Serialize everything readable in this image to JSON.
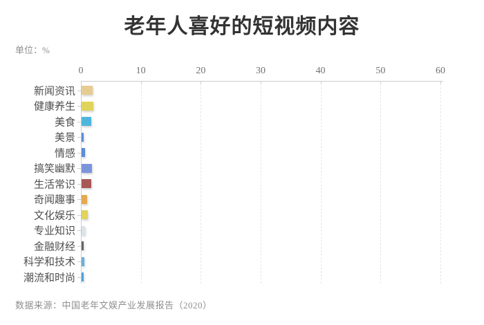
{
  "chart_data": {
    "type": "bar",
    "orientation": "horizontal",
    "title": "老年人喜好的短视频内容",
    "unit_label": "单位：%",
    "source": "数据来源：中国老年文娱产业发展报告（2020）",
    "xlabel": "",
    "ylabel": "",
    "xlim": [
      0,
      60
    ],
    "x_ticks": [
      0,
      10,
      20,
      30,
      40,
      50,
      60
    ],
    "x_axis_position": "top",
    "grid": "dashed-vertical",
    "legend": "none",
    "categories": [
      "新闻资讯",
      "健康养生",
      "美食",
      "美景",
      "情感",
      "搞笑幽默",
      "生活常识",
      "奇闻趣事",
      "文化娱乐",
      "专业知识",
      "金融财经",
      "科学和技术",
      "潮流和时尚"
    ],
    "values": [
      1.9,
      2.0,
      1.6,
      0.4,
      0.6,
      1.75,
      1.65,
      0.95,
      1.05,
      0.6,
      0.4,
      0.5,
      0.4
    ],
    "bar_colors": [
      "#e7cc92",
      "#e0d45c",
      "#4eb6dc",
      "#5c8cd8",
      "#5c8cd8",
      "#7b95dc",
      "#a85956",
      "#e4aa50",
      "#e0d45c",
      "#d9e3e8",
      "#62666a",
      "#66b0e0",
      "#4ba3de"
    ],
    "style_colors": {
      "axis": "#cccccc",
      "grid": "#e5e5e5",
      "tick_label": "#707070",
      "category_label": "#4f4f4f",
      "title": "#333333",
      "muted_text": "#8f8f8f",
      "background": "#ffffff"
    }
  }
}
